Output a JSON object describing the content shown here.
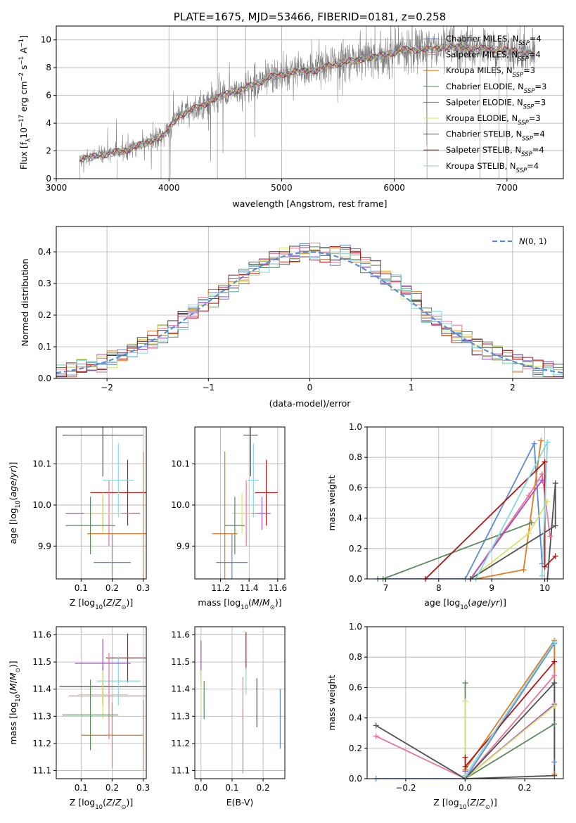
{
  "colors": {
    "chabrier_miles": "#5b8bd6",
    "salpeter_miles": "#e8749a",
    "kroupa_miles": "#e07b23",
    "chabrier_elodie": "#5a8a5e",
    "salpeter_elodie": "#a34fc4",
    "kroupa_elodie": "#d9e36a",
    "chabrier_stelib": "#505050",
    "salpeter_stelib": "#b01818",
    "kroupa_stelib": "#82d8de",
    "data": "#808080",
    "gauss": "#5b8bd6"
  },
  "chart_data": [
    {
      "id": "spectrum",
      "type": "line",
      "title": "PLATE=1675, MJD=53466, FIBERID=0181, z=0.258",
      "xlabel": "wavelength [Angstrom, rest frame]",
      "ylabel_parts": [
        "Flux [f",
        "λ",
        "10",
        "−17",
        " erg cm",
        "−2",
        " s",
        "−1",
        " A",
        "−1",
        "]"
      ],
      "xlim": [
        3000,
        7500
      ],
      "ylim": [
        0,
        11
      ],
      "xticks": [
        "3000",
        "4000",
        "5000",
        "6000",
        "7000"
      ],
      "yticks": [
        "0",
        "2",
        "4",
        "6",
        "8",
        "10"
      ],
      "grid": true,
      "legend_position": "top-right",
      "legend": [
        {
          "name": "Chabrier MILES, N",
          "sub": "SSP",
          "tail": "=4",
          "color": "chabrier_miles"
        },
        {
          "name": "Salpeter MILES, N",
          "sub": "SSP",
          "tail": "=4",
          "color": "salpeter_miles"
        },
        {
          "name": "Kroupa MILES, N",
          "sub": "SSP",
          "tail": "=3",
          "color": "kroupa_miles"
        },
        {
          "name": "Chabrier ELODIE, N",
          "sub": "SSP",
          "tail": "=3",
          "color": "chabrier_elodie"
        },
        {
          "name": "Salpeter ELODIE, N",
          "sub": "SSP",
          "tail": "=3",
          "color": "salpeter_elodie"
        },
        {
          "name": "Kroupa ELODIE, N",
          "sub": "SSP",
          "tail": "=3",
          "color": "kroupa_elodie"
        },
        {
          "name": "Chabrier STELIB, N",
          "sub": "SSP",
          "tail": "=4",
          "color": "chabrier_stelib"
        },
        {
          "name": "Salpeter STELIB, N",
          "sub": "SSP",
          "tail": "=4",
          "color": "salpeter_stelib"
        },
        {
          "name": "Kroupa STELIB, N",
          "sub": "SSP",
          "tail": "=4",
          "color": "kroupa_stelib"
        }
      ],
      "continuum": [
        [
          3210,
          1.4
        ],
        [
          3400,
          1.7
        ],
        [
          3600,
          2.0
        ],
        [
          3800,
          2.6
        ],
        [
          3950,
          3.1
        ],
        [
          4100,
          4.6
        ],
        [
          4300,
          5.3
        ],
        [
          4500,
          6.1
        ],
        [
          4700,
          6.6
        ],
        [
          4900,
          7.3
        ],
        [
          5100,
          7.7
        ],
        [
          5300,
          7.8
        ],
        [
          5500,
          8.3
        ],
        [
          5700,
          8.6
        ],
        [
          5900,
          8.9
        ],
        [
          6100,
          9.3
        ],
        [
          6300,
          9.3
        ],
        [
          6500,
          9.5
        ],
        [
          6700,
          9.4
        ],
        [
          6900,
          9.3
        ],
        [
          7100,
          9.2
        ],
        [
          7250,
          9.0
        ]
      ]
    },
    {
      "id": "residuals",
      "type": "histogram",
      "xlabel": "(data-model)/error",
      "ylabel": "Normed distribution",
      "xlim": [
        -2.5,
        2.5
      ],
      "ylim": [
        0,
        0.48
      ],
      "xticks": [
        "−2",
        "−1",
        "0",
        "1",
        "2"
      ],
      "yticks": [
        "0.0",
        "0.1",
        "0.2",
        "0.3",
        "0.4"
      ],
      "grid": true,
      "legend_position": "top-right",
      "legend": [
        {
          "name": "N(0,1)",
          "color": "gauss"
        }
      ],
      "bin_width": 0.1
    },
    {
      "id": "age_vs_z",
      "type": "errorbar",
      "xlabel": "Z [log10(Z/Z⊙)]",
      "ylabel": "age [log10(age/yr)]",
      "xlim": [
        0.02,
        0.31
      ],
      "ylim": [
        9.82,
        10.19
      ],
      "xticks": [
        0.1,
        0.2,
        0.3
      ],
      "yticks": [
        9.9,
        10.0,
        10.1
      ],
      "points": [
        {
          "x": 0.17,
          "xerr": 0.13,
          "y": 10.17,
          "yerr": 0.1,
          "color": "chabrier_stelib"
        },
        {
          "x": 0.2,
          "xerr": 0.06,
          "y": 9.86,
          "yerr": 0.07,
          "color": "chabrier_miles"
        },
        {
          "x": 0.25,
          "xerr": 0.12,
          "y": 10.03,
          "yerr": 0.08,
          "color": "salpeter_stelib"
        },
        {
          "x": 0.22,
          "xerr": 0.05,
          "y": 10.06,
          "yerr": 0.09,
          "color": "kroupa_stelib"
        },
        {
          "x": 0.17,
          "xerr": 0.12,
          "y": 9.98,
          "yerr": 0.04,
          "color": "salpeter_elodie"
        },
        {
          "x": 0.19,
          "xerr": 0.07,
          "y": 9.98,
          "yerr": 0.08,
          "color": "salpeter_miles"
        },
        {
          "x": 0.17,
          "xerr": 0.06,
          "y": 9.98,
          "yerr": 0.05,
          "color": "kroupa_elodie"
        },
        {
          "x": 0.13,
          "xerr": 0.08,
          "y": 9.95,
          "yerr": 0.07,
          "color": "chabrier_elodie"
        },
        {
          "x": 0.3,
          "xerr": 0.18,
          "y": 9.93,
          "yerr": 0.2,
          "color": "kroupa_miles"
        }
      ]
    },
    {
      "id": "age_vs_mass",
      "type": "errorbar",
      "xlabel": "mass [log10(M/M⊙)]",
      "ylabel": "",
      "xlim": [
        11.02,
        11.65
      ],
      "ylim": [
        9.82,
        10.19
      ],
      "xticks": [
        11.2,
        11.4,
        11.6
      ],
      "yticks": [
        9.9,
        10.0,
        10.1
      ],
      "points": [
        {
          "x": 11.41,
          "xerr": 0.05,
          "y": 10.17,
          "yerr": 0.1,
          "color": "chabrier_stelib"
        },
        {
          "x": 11.28,
          "xerr": 0.11,
          "y": 9.86,
          "yerr": 0.07,
          "color": "chabrier_miles"
        },
        {
          "x": 11.52,
          "xerr": 0.08,
          "y": 10.03,
          "yerr": 0.08,
          "color": "salpeter_stelib"
        },
        {
          "x": 11.43,
          "xerr": 0.04,
          "y": 10.06,
          "yerr": 0.09,
          "color": "kroupa_stelib"
        },
        {
          "x": 11.49,
          "xerr": 0.06,
          "y": 9.98,
          "yerr": 0.04,
          "color": "salpeter_elodie"
        },
        {
          "x": 11.38,
          "xerr": 0.08,
          "y": 9.98,
          "yerr": 0.08,
          "color": "salpeter_miles"
        },
        {
          "x": 11.35,
          "xerr": 0.07,
          "y": 9.98,
          "yerr": 0.05,
          "color": "kroupa_elodie"
        },
        {
          "x": 11.3,
          "xerr": 0.07,
          "y": 9.95,
          "yerr": 0.07,
          "color": "chabrier_elodie"
        },
        {
          "x": 11.23,
          "xerr": 0.09,
          "y": 9.93,
          "yerr": 0.2,
          "color": "kroupa_miles"
        }
      ]
    },
    {
      "id": "weight_vs_age",
      "type": "line",
      "xlabel": "age [log10(age/yr)]",
      "ylabel": "mass weight",
      "xlim": [
        6.65,
        10.35
      ],
      "ylim": [
        0,
        1
      ],
      "xticks": [
        7,
        8,
        9,
        10
      ],
      "yticks": [
        "0.0",
        "0.2",
        "0.4",
        "0.6",
        "0.8",
        "1.0"
      ],
      "series": [
        {
          "color": "chabrier_miles",
          "points": [
            [
              6.85,
              0.0
            ],
            [
              8.5,
              0.0
            ],
            [
              9.8,
              0.89
            ],
            [
              9.95,
              0.1
            ]
          ]
        },
        {
          "color": "salpeter_miles",
          "points": [
            [
              8.6,
              0.0
            ],
            [
              9.7,
              0.55
            ],
            [
              9.95,
              0.69
            ],
            [
              10.1,
              0.28
            ]
          ]
        },
        {
          "color": "kroupa_miles",
          "points": [
            [
              8.7,
              0.0
            ],
            [
              9.6,
              0.06
            ],
            [
              9.93,
              0.91
            ]
          ]
        },
        {
          "color": "chabrier_elodie",
          "points": [
            [
              6.95,
              0.0
            ],
            [
              9.75,
              0.37
            ]
          ]
        },
        {
          "color": "salpeter_elodie",
          "points": [
            [
              8.6,
              0.0
            ],
            [
              9.95,
              0.65
            ]
          ]
        },
        {
          "color": "kroupa_elodie",
          "points": [
            [
              8.6,
              0.0
            ],
            [
              9.7,
              0.3
            ],
            [
              10.05,
              0.51
            ]
          ]
        },
        {
          "color": "chabrier_stelib",
          "points": [
            [
              8.6,
              0.0
            ],
            [
              10.2,
              0.35
            ],
            [
              10.2,
              0.63
            ],
            [
              10.05,
              0.0
            ]
          ]
        },
        {
          "color": "salpeter_stelib",
          "points": [
            [
              7.75,
              0.0
            ],
            [
              10.0,
              0.77
            ],
            [
              10.0,
              0.08
            ],
            [
              10.2,
              0.15
            ]
          ]
        },
        {
          "color": "kroupa_stelib",
          "points": [
            [
              8.7,
              0.0
            ],
            [
              10.05,
              0.9
            ],
            [
              9.95,
              0.02
            ]
          ]
        }
      ]
    },
    {
      "id": "mass_vs_z",
      "type": "errorbar",
      "xlabel": "Z [log10(Z/Z⊙)]",
      "ylabel": "mass [log10(M/M⊙)]",
      "xlim": [
        0.02,
        0.31
      ],
      "ylim": [
        11.07,
        11.63
      ],
      "xticks": [
        0.1,
        0.2,
        0.3
      ],
      "yticks": [
        11.1,
        11.2,
        11.3,
        11.4,
        11.5,
        11.6
      ],
      "points": [
        {
          "x": 0.17,
          "xerr": 0.14,
          "y": 11.41,
          "yerr": 0.07,
          "color": "chabrier_stelib"
        },
        {
          "x": 0.25,
          "xerr": 0.07,
          "y": 11.515,
          "yerr": 0.09,
          "color": "salpeter_stelib"
        },
        {
          "x": 0.22,
          "xerr": 0.07,
          "y": 11.43,
          "yerr": 0.09,
          "color": "kroupa_stelib"
        },
        {
          "x": 0.17,
          "xerr": 0.09,
          "y": 11.495,
          "yerr": 0.09,
          "color": "salpeter_elodie"
        },
        {
          "x": 0.19,
          "xerr": 0.13,
          "y": 11.375,
          "yerr": 0.16,
          "color": "salpeter_miles"
        },
        {
          "x": 0.17,
          "xerr": 0.08,
          "y": 11.38,
          "yerr": 0.09,
          "color": "kroupa_elodie"
        },
        {
          "x": 0.13,
          "xerr": 0.09,
          "y": 11.305,
          "yerr": 0.13,
          "color": "chabrier_elodie"
        },
        {
          "x": 0.2,
          "xerr": 0.1,
          "y": 11.23,
          "yerr": 0.12,
          "color": "kroupa_miles"
        },
        {
          "x": 0.3,
          "xerr": 0.0,
          "y": 11.23,
          "yerr": 0.13,
          "color": "kroupa_miles"
        }
      ]
    },
    {
      "id": "mass_vs_ebv",
      "type": "errorbar",
      "xlabel": "E(B-V)",
      "ylabel": "",
      "xlim": [
        -0.02,
        0.27
      ],
      "ylim": [
        11.07,
        11.63
      ],
      "xticks": [
        "0.0",
        "0.1",
        "0.2"
      ],
      "yticks": [
        11.1,
        11.2,
        11.3,
        11.4,
        11.5,
        11.6
      ],
      "points": [
        {
          "x": 0.0,
          "y": 11.5,
          "yerr": 0.08,
          "color": "salpeter_elodie"
        },
        {
          "x": 0.0,
          "y": 11.39,
          "yerr": 0.08,
          "color": "kroupa_elodie"
        },
        {
          "x": 0.01,
          "y": 11.36,
          "yerr": 0.07,
          "color": "chabrier_elodie"
        },
        {
          "x": 0.135,
          "y": 11.21,
          "yerr": 0.12,
          "color": "kroupa_miles"
        },
        {
          "x": 0.135,
          "y": 11.365,
          "yerr": 0.08,
          "color": "salpeter_miles"
        },
        {
          "x": 0.145,
          "y": 11.54,
          "yerr": 0.07,
          "color": "salpeter_stelib"
        },
        {
          "x": 0.145,
          "y": 11.43,
          "yerr": 0.05,
          "color": "kroupa_stelib"
        },
        {
          "x": 0.18,
          "y": 11.35,
          "yerr": 0.09,
          "color": "chabrier_stelib"
        },
        {
          "x": 0.255,
          "y": 11.29,
          "yerr": 0.11,
          "color": "chabrier_miles"
        }
      ]
    },
    {
      "id": "weight_vs_z",
      "type": "line",
      "xlabel": "Z [log10(Z/Z⊙)]",
      "ylabel": "mass weight",
      "xlim": [
        -0.33,
        0.33
      ],
      "ylim": [
        0,
        1
      ],
      "xticks": [
        "−0.2",
        "0.0",
        "0.2"
      ],
      "yticks": [
        "0.0",
        "0.2",
        "0.4",
        "0.6",
        "0.8",
        "1.0"
      ],
      "series": [
        {
          "color": "chabrier_miles",
          "points": [
            [
              -0.3,
              0.0
            ],
            [
              0.0,
              0.0
            ],
            [
              0.3,
              0.89
            ],
            [
              0.3,
              0.11
            ]
          ]
        },
        {
          "color": "salpeter_miles",
          "points": [
            [
              -0.3,
              0.28
            ],
            [
              0.0,
              0.0
            ],
            [
              0.3,
              0.68
            ]
          ]
        },
        {
          "color": "kroupa_miles",
          "points": [
            [
              0.0,
              0.06
            ],
            [
              0.3,
              0.91
            ],
            [
              0.3,
              0.03
            ]
          ]
        },
        {
          "color": "chabrier_elodie",
          "points": [
            [
              0.0,
              0.63
            ],
            [
              0.0,
              0.0
            ],
            [
              0.3,
              0.36
            ]
          ]
        },
        {
          "color": "salpeter_elodie",
          "points": [
            [
              0.0,
              0.05
            ],
            [
              0.0,
              0.0
            ],
            [
              0.3,
              0.49
            ]
          ]
        },
        {
          "color": "kroupa_elodie",
          "points": [
            [
              0.0,
              0.51
            ],
            [
              0.0,
              0.0
            ],
            [
              0.3,
              0.48
            ]
          ]
        },
        {
          "color": "chabrier_stelib",
          "points": [
            [
              -0.3,
              0.35
            ],
            [
              0.0,
              0.0
            ],
            [
              0.3,
              0.63
            ],
            [
              0.3,
              0.02
            ],
            [
              0.0,
              0.0
            ]
          ]
        },
        {
          "color": "salpeter_stelib",
          "points": [
            [
              0.0,
              0.14
            ],
            [
              0.0,
              0.08
            ],
            [
              0.3,
              0.77
            ]
          ]
        },
        {
          "color": "kroupa_stelib",
          "points": [
            [
              0.0,
              0.02
            ],
            [
              0.3,
              0.9
            ]
          ]
        }
      ]
    }
  ]
}
